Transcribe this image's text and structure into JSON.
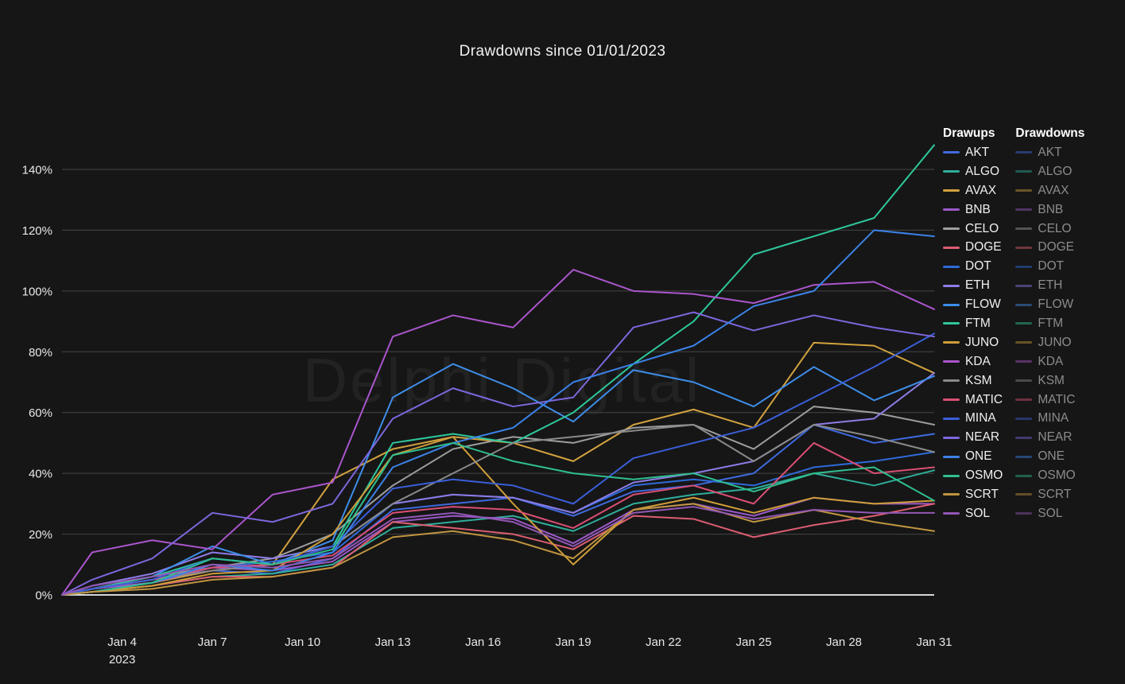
{
  "title": "Drawdowns since 01/01/2023",
  "watermark": "Delphi Digital",
  "legend": {
    "drawups_header": "Drawups",
    "drawdowns_header": "Drawdowns",
    "tokens": [
      "AKT",
      "ALGO",
      "AVAX",
      "BNB",
      "CELO",
      "DOGE",
      "DOT",
      "ETH",
      "FLOW",
      "FTM",
      "JUNO",
      "KDA",
      "KSM",
      "MATIC",
      "MINA",
      "NEAR",
      "ONE",
      "OSMO",
      "SCRT",
      "SOL"
    ]
  },
  "chart_data": {
    "type": "line",
    "title": "Drawdowns since 01/01/2023",
    "xlabel": "",
    "ylabel": "",
    "grid": true,
    "legend_position": "right",
    "ylim": [
      0,
      150
    ],
    "y_ticks": [
      0,
      20,
      40,
      60,
      80,
      100,
      120,
      140
    ],
    "y_tick_labels": [
      "0%",
      "20%",
      "40%",
      "60%",
      "80%",
      "100%",
      "120%",
      "140%"
    ],
    "x_days": [
      2,
      3,
      5,
      7,
      9,
      11,
      13,
      15,
      17,
      19,
      21,
      23,
      25,
      27,
      29,
      31
    ],
    "x_ticks": [
      {
        "day": 4,
        "label": "Jan 4",
        "sublabel": "2023"
      },
      {
        "day": 7,
        "label": "Jan 7"
      },
      {
        "day": 10,
        "label": "Jan 10"
      },
      {
        "day": 13,
        "label": "Jan 13"
      },
      {
        "day": 16,
        "label": "Jan 16"
      },
      {
        "day": 19,
        "label": "Jan 19"
      },
      {
        "day": 22,
        "label": "Jan 22"
      },
      {
        "day": 25,
        "label": "Jan 25"
      },
      {
        "day": 28,
        "label": "Jan 28"
      },
      {
        "day": 31,
        "label": "Jan 31"
      }
    ],
    "colors": {
      "background": "#161616",
      "gridline": "#454545",
      "zero_line": "#d6d6d6",
      "axis_text": "#e8e8e8",
      "watermark": "rgba(255,255,255,0.055)"
    },
    "series": [
      {
        "name": "AKT",
        "color": "#3f6ae0",
        "values": [
          0,
          2,
          4,
          8,
          7,
          12,
          28,
          30,
          32,
          26,
          34,
          36,
          40,
          56,
          50,
          53
        ]
      },
      {
        "name": "ALGO",
        "color": "#2fae9b",
        "values": [
          0,
          1,
          3,
          6,
          7,
          10,
          22,
          24,
          26,
          21,
          30,
          33,
          35,
          40,
          36,
          41
        ]
      },
      {
        "name": "AVAX",
        "color": "#d2a23f",
        "values": [
          0,
          2,
          4,
          8,
          10,
          38,
          48,
          52,
          50,
          44,
          56,
          61,
          55,
          83,
          82,
          73
        ]
      },
      {
        "name": "BNB",
        "color": "#9b59c8",
        "values": [
          0,
          2,
          4,
          9,
          8,
          11,
          24,
          26,
          25,
          17,
          28,
          30,
          26,
          32,
          30,
          30
        ]
      },
      {
        "name": "CELO",
        "color": "#9e9e9e",
        "values": [
          0,
          2,
          6,
          9,
          12,
          20,
          36,
          48,
          52,
          50,
          55,
          56,
          48,
          62,
          60,
          56
        ]
      },
      {
        "name": "DOGE",
        "color": "#dd5d72",
        "values": [
          0,
          1,
          3,
          6,
          6,
          9,
          24,
          22,
          20,
          15,
          26,
          25,
          19,
          23,
          26,
          30
        ]
      },
      {
        "name": "DOT",
        "color": "#2f6ad9",
        "values": [
          0,
          2,
          5,
          9,
          11,
          14,
          30,
          33,
          32,
          27,
          36,
          38,
          36,
          42,
          44,
          47
        ]
      },
      {
        "name": "ETH",
        "color": "#8d7ce6",
        "values": [
          0,
          3,
          7,
          14,
          12,
          16,
          30,
          33,
          32,
          27,
          37,
          40,
          44,
          56,
          58,
          73
        ]
      },
      {
        "name": "FLOW",
        "color": "#3e8de8",
        "values": [
          0,
          2,
          6,
          16,
          10,
          18,
          65,
          76,
          68,
          57,
          74,
          70,
          62,
          75,
          64,
          72
        ]
      },
      {
        "name": "FTM",
        "color": "#2ec79b",
        "values": [
          0,
          2,
          6,
          12,
          10,
          16,
          50,
          53,
          50,
          60,
          76,
          90,
          112,
          118,
          124,
          148
        ]
      },
      {
        "name": "JUNO",
        "color": "#cf9d3a",
        "values": [
          0,
          1,
          3,
          7,
          8,
          20,
          46,
          52,
          30,
          10,
          28,
          32,
          27,
          32,
          30,
          31
        ]
      },
      {
        "name": "KDA",
        "color": "#aa55cc",
        "values": [
          0,
          14,
          18,
          15,
          33,
          37,
          85,
          92,
          88,
          107,
          100,
          99,
          96,
          102,
          103,
          94
        ]
      },
      {
        "name": "KSM",
        "color": "#8a8a8a",
        "values": [
          0,
          2,
          5,
          8,
          10,
          16,
          30,
          40,
          50,
          52,
          54,
          56,
          44,
          56,
          52,
          47
        ]
      },
      {
        "name": "MATIC",
        "color": "#d94f74",
        "values": [
          0,
          2,
          5,
          9,
          10,
          13,
          27,
          29,
          28,
          22,
          33,
          36,
          30,
          50,
          40,
          42
        ]
      },
      {
        "name": "MINA",
        "color": "#3a5fd9",
        "values": [
          0,
          2,
          5,
          12,
          10,
          16,
          35,
          38,
          36,
          30,
          45,
          50,
          55,
          65,
          75,
          86
        ]
      },
      {
        "name": "NEAR",
        "color": "#7e66dd",
        "values": [
          0,
          5,
          12,
          27,
          24,
          30,
          58,
          68,
          62,
          65,
          88,
          93,
          87,
          92,
          88,
          85
        ]
      },
      {
        "name": "ONE",
        "color": "#3b82e8",
        "values": [
          0,
          1,
          4,
          10,
          8,
          14,
          42,
          50,
          55,
          70,
          76,
          82,
          95,
          100,
          120,
          118
        ]
      },
      {
        "name": "OSMO",
        "color": "#2fbf8f",
        "values": [
          0,
          1,
          4,
          12,
          10,
          15,
          46,
          50,
          44,
          40,
          38,
          40,
          34,
          40,
          42,
          31
        ]
      },
      {
        "name": "SCRT",
        "color": "#c09540",
        "values": [
          0,
          1,
          2,
          5,
          6,
          9,
          19,
          21,
          18,
          12,
          28,
          30,
          24,
          28,
          24,
          21
        ]
      },
      {
        "name": "SOL",
        "color": "#9357b5",
        "values": [
          0,
          3,
          6,
          10,
          9,
          12,
          25,
          27,
          24,
          16,
          27,
          29,
          25,
          28,
          27,
          27
        ]
      }
    ]
  }
}
